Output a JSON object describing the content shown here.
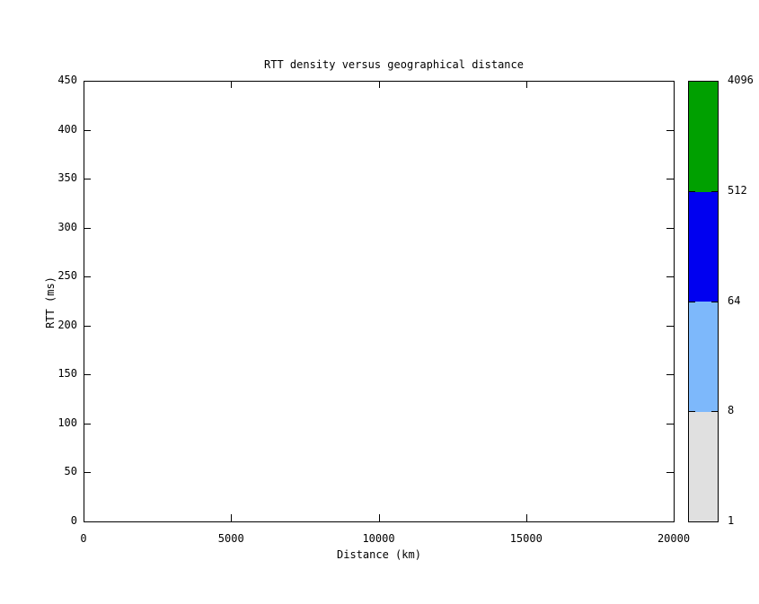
{
  "chart_data": {
    "type": "heatmap",
    "title": "RTT density versus geographical distance",
    "xlabel": "Distance (km)",
    "ylabel": "RTT (ms)",
    "xlim": [
      0,
      20000
    ],
    "ylim": [
      0,
      450
    ],
    "xticks": [
      0,
      5000,
      10000,
      15000,
      20000
    ],
    "yticks": [
      0,
      50,
      100,
      150,
      200,
      250,
      300,
      350,
      400,
      450
    ],
    "grid": false,
    "legend_position": "none",
    "series": [],
    "note": "plot area is empty - no density points rendered",
    "axis_color": "#000000",
    "background_color": "#ffffff",
    "colorbar": {
      "scale": "log",
      "position": "right",
      "tick_labels": [
        "1",
        "8",
        "64",
        "512",
        "4096"
      ],
      "segments": [
        {
          "from": "1",
          "to": "8",
          "color": "#e0e0e0"
        },
        {
          "from": "8",
          "to": "64",
          "color": "#7db8fb"
        },
        {
          "from": "64",
          "to": "512",
          "color": "#0000f0"
        },
        {
          "from": "512",
          "to": "4096",
          "color": "#00a000"
        }
      ]
    }
  }
}
